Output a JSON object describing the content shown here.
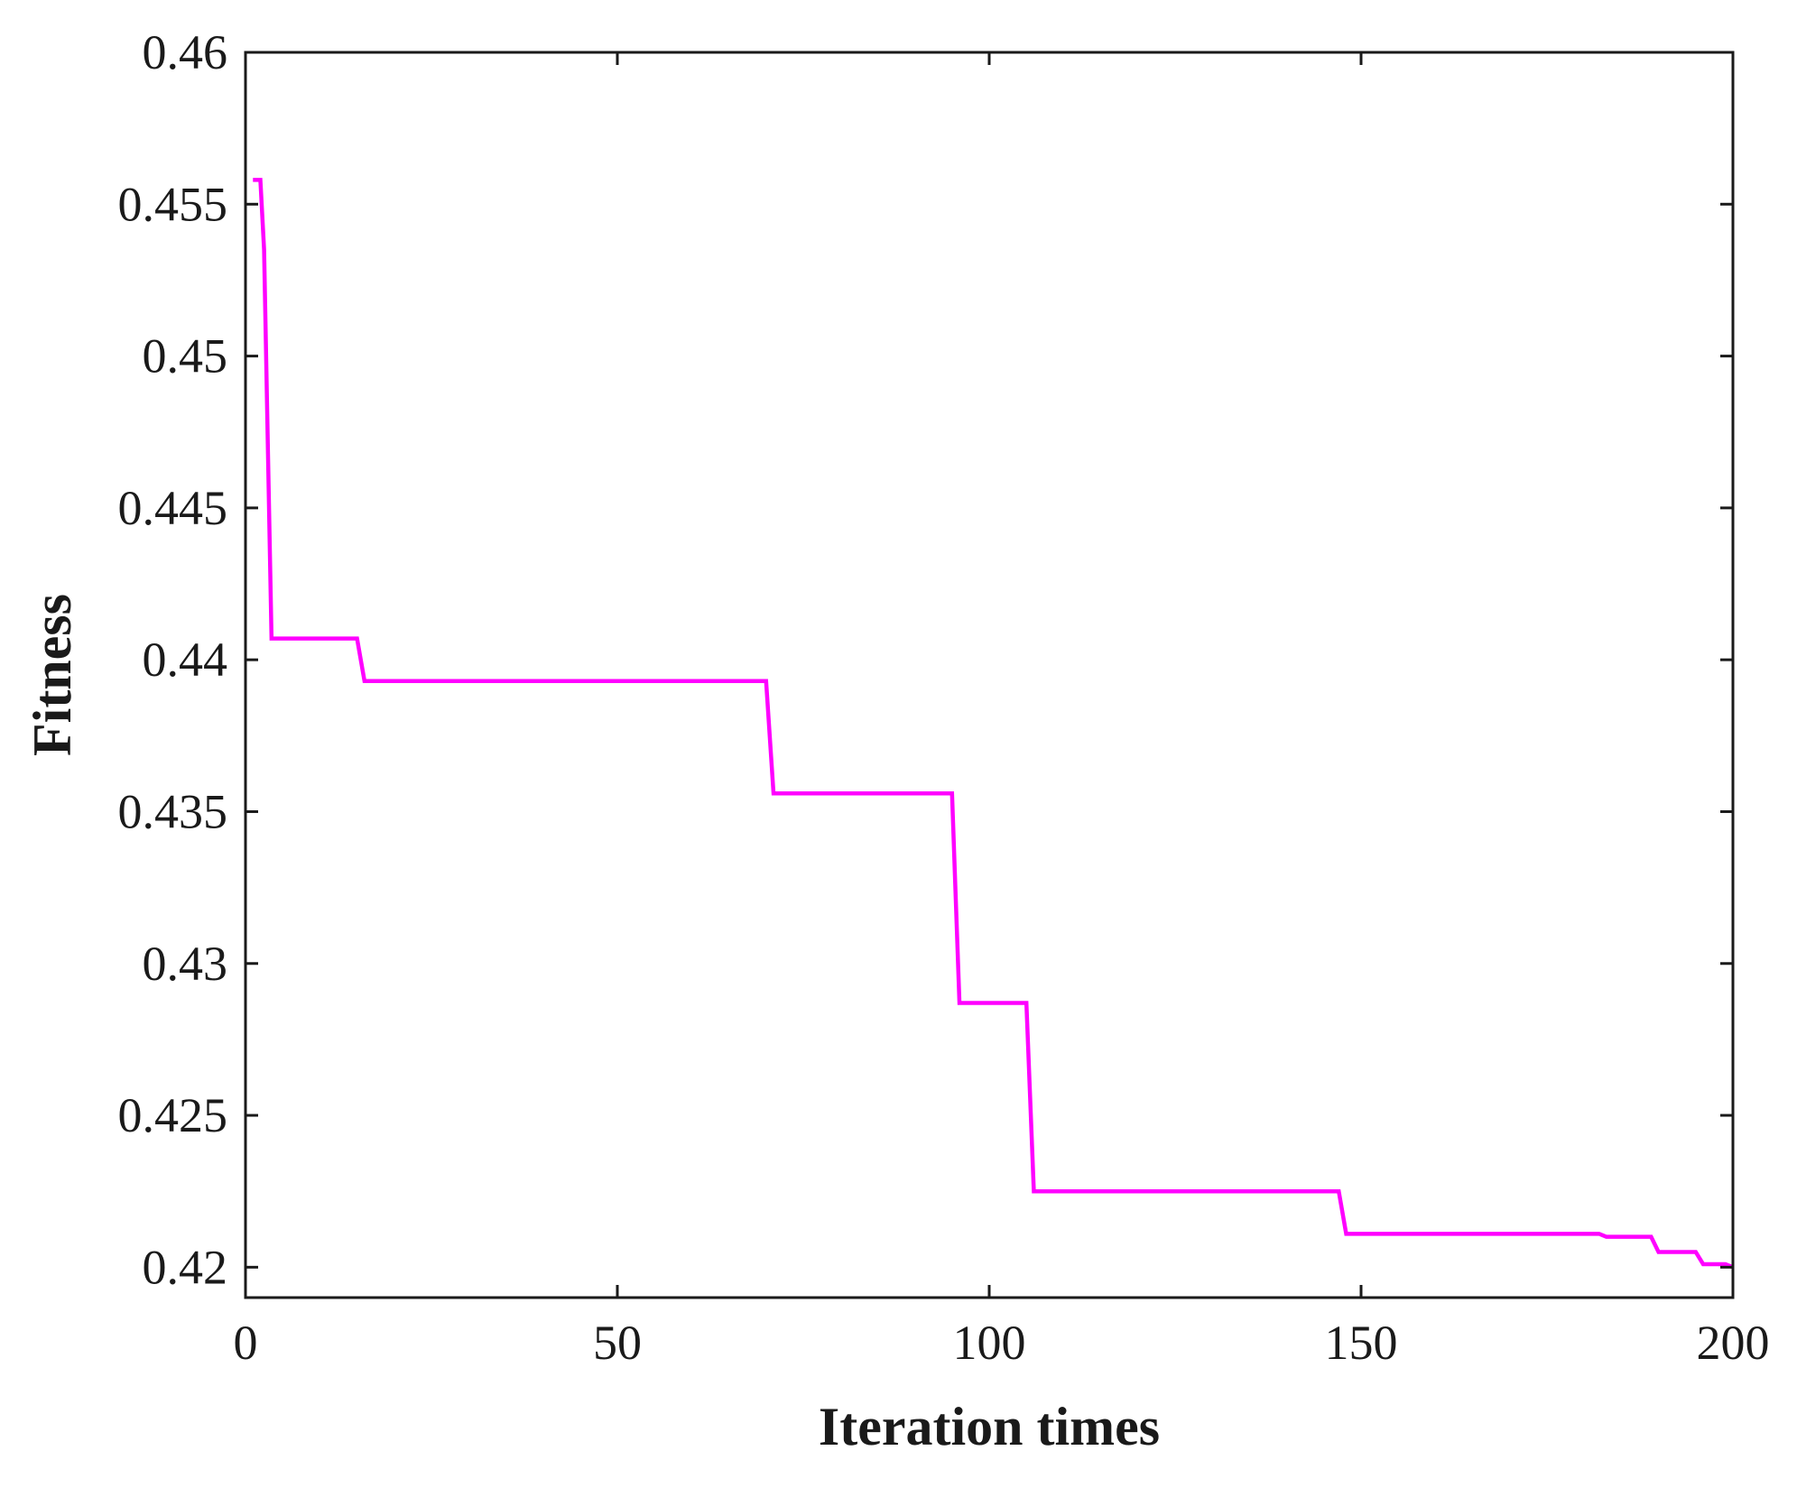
{
  "colors": {
    "series": "#ff00ff",
    "axis": "#1a1a1a",
    "background": "#ffffff"
  },
  "chart_data": {
    "type": "line",
    "title": "",
    "xlabel": "Iteration times",
    "ylabel": "Fitness",
    "xlim": [
      0,
      200
    ],
    "ylim": [
      0.419,
      0.46
    ],
    "xticks": [
      0,
      50,
      100,
      150,
      200
    ],
    "xtick_labels": [
      "0",
      "50",
      "100",
      "150",
      "200"
    ],
    "yticks": [
      0.42,
      0.425,
      0.43,
      0.435,
      0.44,
      0.445,
      0.45,
      0.455,
      0.46
    ],
    "ytick_labels": [
      "0.42",
      "0.425",
      "0.43",
      "0.435",
      "0.44",
      "0.445",
      "0.45",
      "0.455",
      "0.46"
    ],
    "grid": false,
    "legend": "none",
    "series": [
      {
        "x": [
          1,
          2,
          2.5,
          3.5,
          15,
          16,
          70,
          71,
          95,
          96,
          105,
          106,
          147,
          148,
          182,
          183,
          189,
          190,
          195,
          196,
          199,
          200
        ],
        "y": [
          0.4558,
          0.4558,
          0.4535,
          0.4407,
          0.4407,
          0.4393,
          0.4393,
          0.4356,
          0.4356,
          0.4287,
          0.4287,
          0.4225,
          0.4225,
          0.4211,
          0.4211,
          0.421,
          0.421,
          0.4205,
          0.4205,
          0.4201,
          0.4201,
          0.42
        ]
      }
    ]
  }
}
